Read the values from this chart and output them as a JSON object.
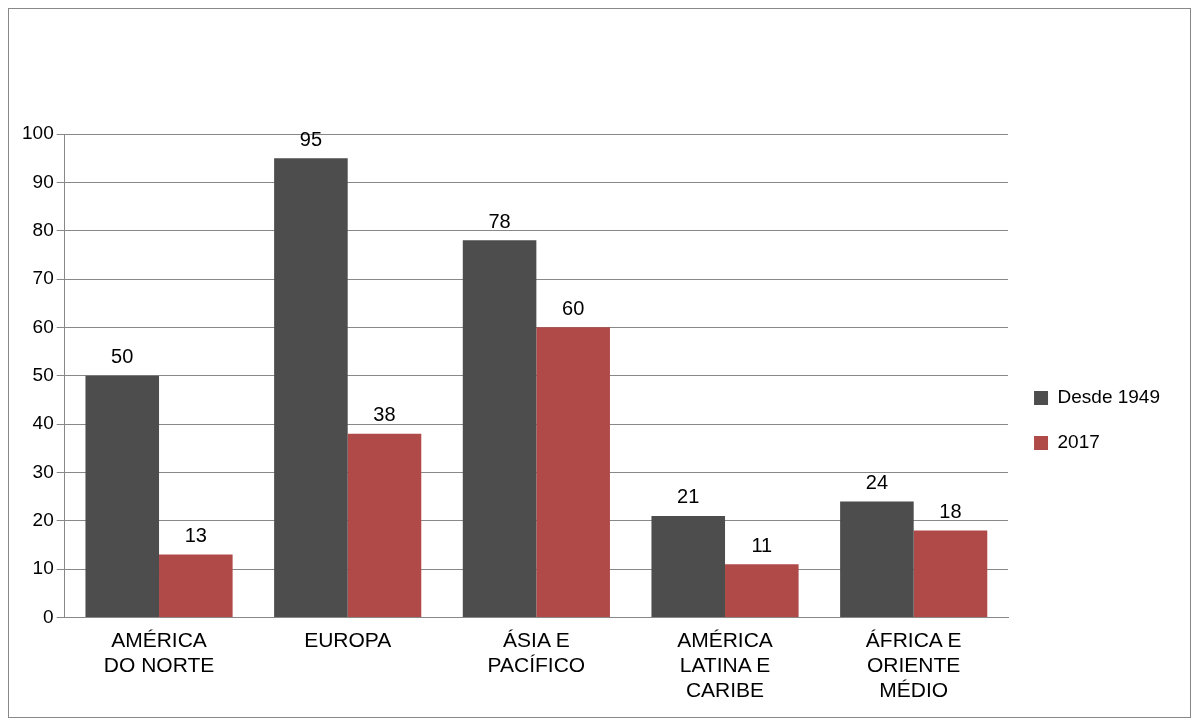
{
  "chart_data": {
    "type": "bar",
    "categories": [
      "AMÉRICA DO NORTE",
      "EUROPA",
      "ÁSIA E PACÍFICO",
      "AMÉRICA LATINA E CARIBE",
      "ÁFRICA E ORIENTE MÉDIO"
    ],
    "series": [
      {
        "name": "Desde 1949",
        "color": "#4d4d4d",
        "values": [
          50,
          95,
          78,
          21,
          24
        ]
      },
      {
        "name": "2017",
        "color": "#b04a48",
        "values": [
          13,
          38,
          60,
          11,
          18
        ]
      }
    ],
    "ylim": [
      0,
      100
    ],
    "yticks": [
      0,
      10,
      20,
      30,
      40,
      50,
      60,
      70,
      80,
      90,
      100
    ],
    "grid": "y",
    "legend": "right",
    "data_labels": true
  }
}
